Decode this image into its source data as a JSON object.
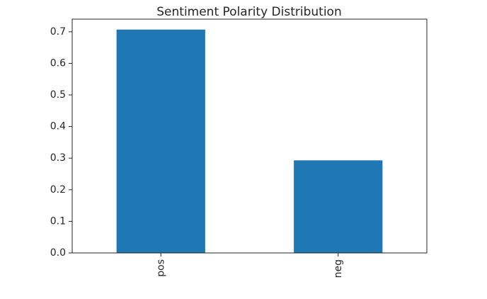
{
  "chart_data": {
    "type": "bar",
    "title": "Sentiment Polarity Distribution",
    "categories": [
      "pos",
      "neg"
    ],
    "values": [
      0.707,
      0.293
    ],
    "xlabel": "",
    "ylabel": "",
    "ylim": [
      0.0,
      0.74
    ],
    "yticks": [
      "0.0",
      "0.1",
      "0.2",
      "0.3",
      "0.4",
      "0.5",
      "0.6",
      "0.7"
    ],
    "xtick_rotation": "vertical",
    "grid": false,
    "legend": "none",
    "bar_color": "#1f77b4",
    "axis_color": "#262626"
  }
}
